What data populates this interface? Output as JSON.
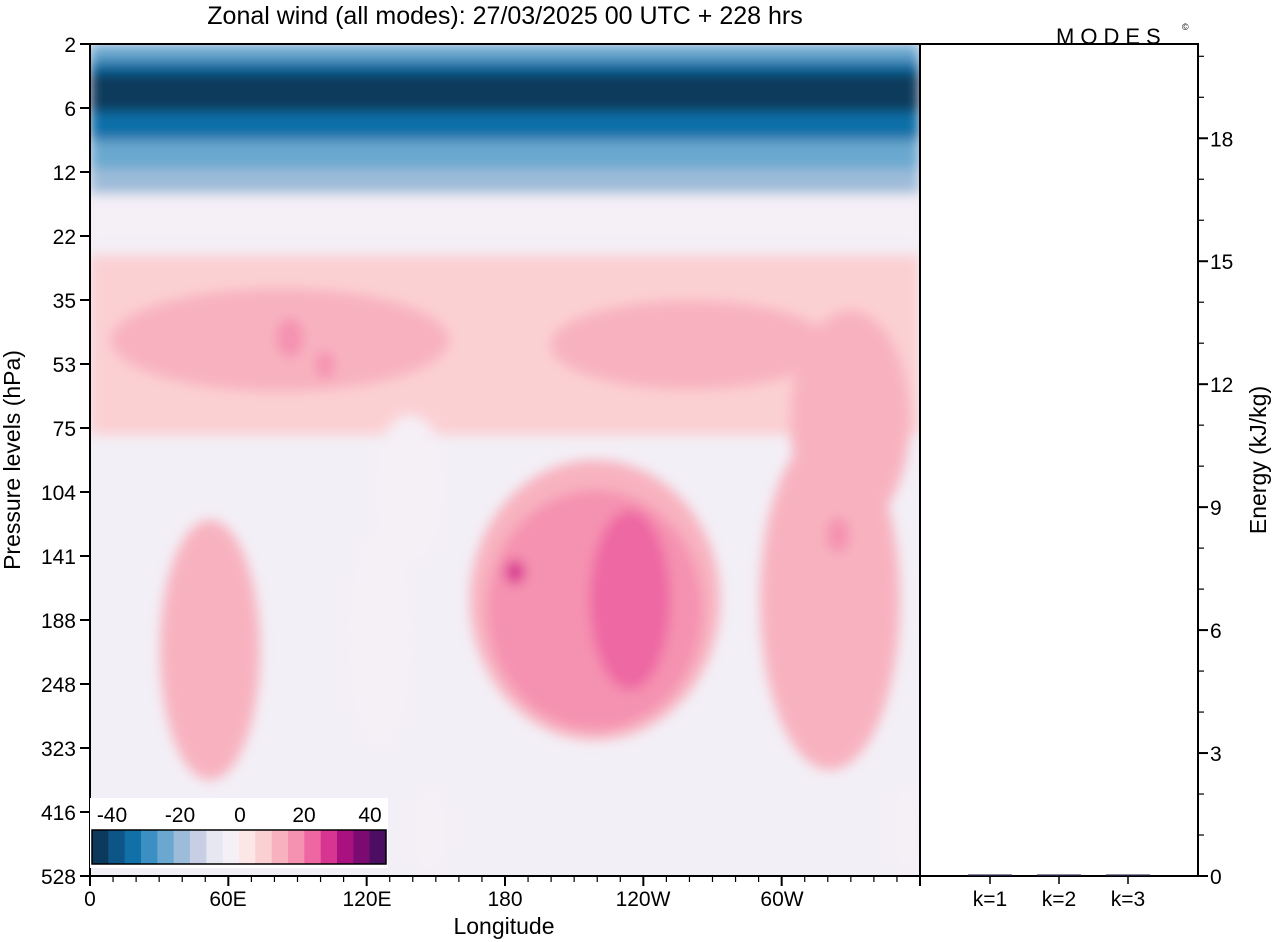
{
  "title": "Zonal wind (all modes):  27/03/2025  00 UTC  + 228 hrs",
  "brand": "MODES",
  "brand_mark": "©",
  "chart_data": [
    {
      "type": "heatmap",
      "title": "Zonal wind (all modes):  27/03/2025  00 UTC  + 228 hrs",
      "xlabel": "Longitude",
      "ylabel": "Pressure levels (hPa)",
      "x_ticks": [
        "0",
        "60E",
        "120E",
        "180",
        "120W",
        "60W"
      ],
      "y_ticks": [
        "2",
        "6",
        "12",
        "22",
        "35",
        "53",
        "75",
        "104",
        "141",
        "188",
        "248",
        "323",
        "416",
        "528"
      ],
      "colorbar": {
        "tick_labels": [
          "-40",
          "-20",
          "0",
          "20",
          "40"
        ],
        "range": [
          -50,
          50
        ],
        "step": 5,
        "colors": [
          "#0b3a5c",
          "#0d5586",
          "#1170a8",
          "#3b8fc2",
          "#6aa8cf",
          "#9dbcd9",
          "#c8cfe5",
          "#e7e7f2",
          "#f5eff6",
          "#fde6e6",
          "#fbd0d3",
          "#f8b2bf",
          "#f592b1",
          "#ee67a3",
          "#d83592",
          "#a8117f",
          "#7b0b72",
          "#4b0e62"
        ]
      },
      "field_regions": [
        {
          "lon_range": [
            0,
            360
          ],
          "p_range": [
            2,
            6
          ],
          "value": -48
        },
        {
          "lon_range": [
            0,
            360
          ],
          "p_range": [
            6,
            12
          ],
          "value": -35
        },
        {
          "lon_range": [
            0,
            360
          ],
          "p_range": [
            12,
            22
          ],
          "value": -15
        },
        {
          "lon_range": [
            0,
            360
          ],
          "p_range": [
            35,
            75
          ],
          "value": 7
        },
        {
          "lon_range": [
            175,
            275
          ],
          "p_range": [
            104,
            330
          ],
          "value": 12
        },
        {
          "lon_range": [
            220,
            250
          ],
          "p_range": [
            120,
            280
          ],
          "value": 18
        },
        {
          "lon_range": [
            120,
            160
          ],
          "p_range": [
            85,
            150
          ],
          "value": -4
        },
        {
          "lon_range": [
            40,
            70
          ],
          "p_range": [
            104,
            350
          ],
          "value": 6
        },
        {
          "lon_range": [
            300,
            350
          ],
          "p_range": [
            60,
            280
          ],
          "value": 6
        }
      ],
      "grid": false
    },
    {
      "type": "bar",
      "ylabel": "Energy (kJ/kg)",
      "categories": [
        "k=1",
        "k=2",
        "k=3"
      ],
      "values": [
        0.02,
        0.01,
        0.01
      ],
      "ylim": [
        0,
        20.3
      ],
      "y_ticks": [
        "0",
        "3",
        "6",
        "9",
        "12",
        "15",
        "18"
      ],
      "grid": false
    }
  ]
}
